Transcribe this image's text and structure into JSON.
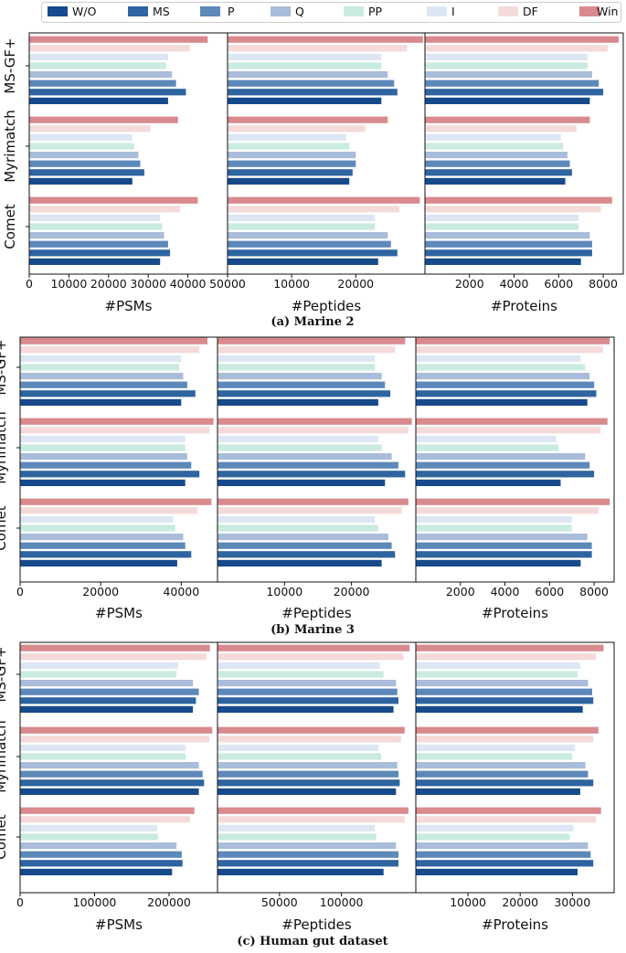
{
  "colors": {
    "W/O": "#174a8b",
    "MS": "#2e64a0",
    "P": "#5d88ba",
    "Q": "#a9bcd9",
    "PP": "#c9ebe0",
    "I": "#dde7f3",
    "DF": "#f5dada",
    "Win": "#d88a8e"
  },
  "legend": [
    "W/O",
    "MS",
    "P",
    "Q",
    "PP",
    "I",
    "DF",
    "Win"
  ],
  "chart_data": [
    {
      "type": "bar",
      "orientation": "horizontal",
      "caption": "(a) Marine 2",
      "categories": [
        "MS-GF+",
        "Myrimatch",
        "Comet"
      ],
      "panels": [
        {
          "xlabel": "#PSMs",
          "xlim": [
            0,
            50000
          ],
          "ticks": [
            0,
            10000,
            20000,
            30000,
            40000,
            50000
          ],
          "tick_labels": [
            "0",
            "10000",
            "20000",
            "30000",
            "40000",
            "50000"
          ],
          "values": {
            "MS-GF+": [
              35000,
              39500,
              37000,
              36000,
              34500,
              35000,
              40500,
              45000
            ],
            "Myrimatch": [
              26000,
              29000,
              28000,
              27500,
              26500,
              26000,
              30500,
              37500
            ],
            "Comet": [
              33000,
              35500,
              35000,
              34000,
              33500,
              33000,
              38000,
              42500
            ]
          }
        },
        {
          "xlabel": "#Peptides",
          "xlim": [
            0,
            30800
          ],
          "ticks": [
            10000,
            20000
          ],
          "tick_labels": [
            "10000",
            "20000"
          ],
          "values": {
            "MS-GF+": [
              24000,
              26500,
              26000,
              25000,
              24000,
              24000,
              28000,
              30500
            ],
            "Myrimatch": [
              19000,
              19500,
              20000,
              20000,
              19000,
              18500,
              21500,
              25000
            ],
            "Comet": [
              23500,
              26500,
              25500,
              25000,
              23000,
              23000,
              26800,
              30000
            ]
          }
        },
        {
          "xlabel": "#Proteins",
          "xlim": [
            0,
            8900
          ],
          "ticks": [
            2000,
            4000,
            6000,
            8000
          ],
          "tick_labels": [
            "2000",
            "4000",
            "6000",
            "8000"
          ],
          "values": {
            "MS-GF+": [
              7400,
              8000,
              7800,
              7500,
              7300,
              7300,
              8200,
              8700
            ],
            "Myrimatch": [
              6300,
              6600,
              6500,
              6400,
              6200,
              6100,
              6800,
              7400
            ],
            "Comet": [
              7000,
              7500,
              7500,
              7400,
              6900,
              6900,
              7900,
              8400
            ]
          }
        }
      ]
    },
    {
      "type": "bar",
      "orientation": "horizontal",
      "caption": "(b) Marine 3",
      "categories": [
        "MS-GF+",
        "Myrimatch",
        "Comet"
      ],
      "panels": [
        {
          "xlabel": "#PSMs",
          "xlim": [
            0,
            49000
          ],
          "ticks": [
            0,
            20000,
            40000
          ],
          "tick_labels": [
            "0",
            "20000",
            "40000"
          ],
          "values": {
            "MS-GF+": [
              40000,
              43500,
              41500,
              40500,
              39500,
              40000,
              44500,
              46500
            ],
            "Myrimatch": [
              41000,
              44500,
              42500,
              41500,
              41000,
              41000,
              47000,
              48000
            ],
            "Comet": [
              39000,
              42500,
              41000,
              40500,
              38500,
              38000,
              44000,
              47500
            ]
          }
        },
        {
          "xlabel": "#Peptides",
          "xlim": [
            0,
            29600
          ],
          "ticks": [
            10000,
            20000
          ],
          "tick_labels": [
            "10000",
            "20000"
          ],
          "values": {
            "MS-GF+": [
              24000,
              25800,
              25000,
              24500,
              23500,
              23500,
              26500,
              28000
            ],
            "Myrimatch": [
              25000,
              28000,
              27000,
              26000,
              24500,
              24000,
              28500,
              29000
            ],
            "Comet": [
              24500,
              26500,
              26000,
              25500,
              24000,
              23500,
              27500,
              28500
            ]
          }
        },
        {
          "xlabel": "#Proteins",
          "xlim": [
            0,
            8900
          ],
          "ticks": [
            2000,
            4000,
            6000,
            8000
          ],
          "tick_labels": [
            "2000",
            "4000",
            "6000",
            "8000"
          ],
          "values": {
            "MS-GF+": [
              7700,
              8100,
              8000,
              7800,
              7600,
              7400,
              8400,
              8700
            ],
            "Myrimatch": [
              6500,
              8000,
              7800,
              7600,
              6400,
              6300,
              8300,
              8600
            ],
            "Comet": [
              7400,
              7900,
              7900,
              7700,
              7000,
              7000,
              8200,
              8700
            ]
          }
        }
      ]
    },
    {
      "type": "bar",
      "orientation": "horizontal",
      "caption": "(c) Human gut dataset",
      "categories": [
        "MS-GF+",
        "Myrimatch",
        "Comet"
      ],
      "panels": [
        {
          "xlabel": "#PSMs",
          "xlim": [
            0,
            265000
          ],
          "ticks": [
            0,
            100000,
            200000
          ],
          "tick_labels": [
            "0",
            "100000",
            "200000"
          ],
          "values": {
            "MS-GF+": [
              232000,
              236000,
              240000,
              232000,
              210000,
              212000,
              250000,
              255000
            ],
            "Myrimatch": [
              240000,
              247000,
              245000,
              240000,
              222000,
              222000,
              254000,
              258000
            ],
            "Comet": [
              204000,
              218000,
              217000,
              210000,
              185000,
              184000,
              228000,
              234000
            ]
          }
        },
        {
          "xlabel": "#Peptides",
          "xlim": [
            0,
            160000
          ],
          "ticks": [
            50000,
            100000
          ],
          "tick_labels": [
            "50000",
            "100000"
          ],
          "values": {
            "MS-GF+": [
              142000,
              146000,
              145000,
              144000,
              134000,
              131000,
              150000,
              155000
            ],
            "Myrimatch": [
              144000,
              147000,
              146000,
              145000,
              132000,
              130000,
              148000,
              151000
            ],
            "Comet": [
              134000,
              146000,
              146000,
              144000,
              128000,
              127000,
              151000,
              154000
            ]
          }
        },
        {
          "xlabel": "#Proteins",
          "xlim": [
            0,
            38000
          ],
          "ticks": [
            10000,
            20000,
            30000
          ],
          "tick_labels": [
            "10000",
            "20000",
            "30000"
          ],
          "values": {
            "MS-GF+": [
              32000,
              34000,
              33800,
              33000,
              31000,
              31500,
              34500,
              36000
            ],
            "Myrimatch": [
              31500,
              34000,
              33000,
              32500,
              30000,
              30500,
              34000,
              35000
            ],
            "Comet": [
              31000,
              34000,
              33500,
              33000,
              29500,
              30200,
              34500,
              35500
            ]
          }
        }
      ]
    }
  ]
}
